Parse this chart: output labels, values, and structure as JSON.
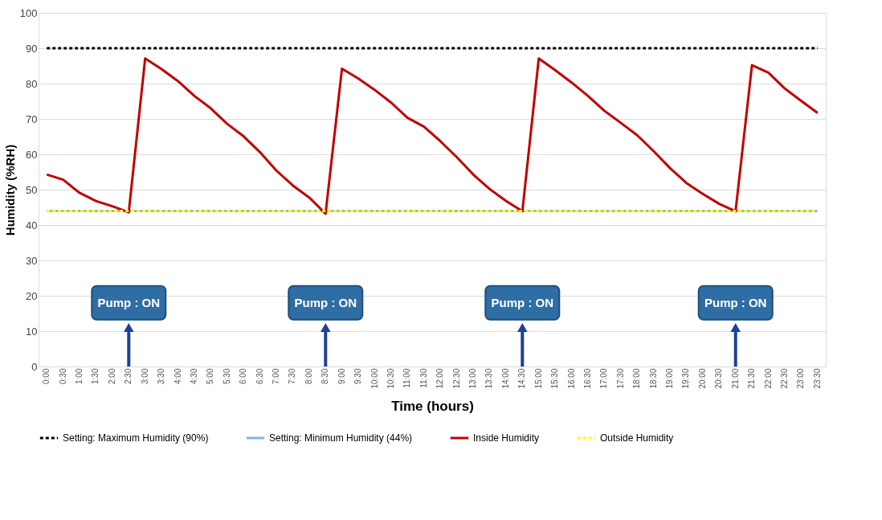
{
  "chart_data": {
    "type": "line",
    "xlabel": "Time (hours)",
    "ylabel": "Humidity (%RH)",
    "categories": [
      "0:00",
      "0:30",
      "1:00",
      "1:30",
      "2:00",
      "2:30",
      "3:00",
      "3:30",
      "4:00",
      "4:30",
      "5:00",
      "5:30",
      "6:00",
      "6:30",
      "7:00",
      "7:30",
      "8:00",
      "8:30",
      "9:00",
      "9:30",
      "10:00",
      "10:30",
      "11:00",
      "11:30",
      "12:00",
      "12:30",
      "13:00",
      "13:30",
      "14:00",
      "14:30",
      "15:00",
      "15:30",
      "16:00",
      "16:30",
      "17:00",
      "17:30",
      "18:00",
      "18:30",
      "19:00",
      "19:30",
      "20:00",
      "20:30",
      "21:00",
      "21:30",
      "22:00",
      "22:30",
      "23:00",
      "23:30"
    ],
    "series": [
      {
        "name": "Setting: Maximum Humidity (90%)",
        "color": "#000000",
        "line_style": "dashed",
        "values": [
          90,
          90,
          90,
          90,
          90,
          90,
          90,
          90,
          90,
          90,
          90,
          90,
          90,
          90,
          90,
          90,
          90,
          90,
          90,
          90,
          90,
          90,
          90,
          90,
          90,
          90,
          90,
          90,
          90,
          90,
          90,
          90,
          90,
          90,
          90,
          90,
          90,
          90,
          90,
          90,
          90,
          90,
          90,
          90,
          90,
          90,
          90,
          90
        ]
      },
      {
        "name": "Setting: Minimum Humidity (44%)",
        "color": "#8eb4e3",
        "line_style": "solid",
        "values": [
          44,
          44,
          44,
          44,
          44,
          44,
          44,
          44,
          44,
          44,
          44,
          44,
          44,
          44,
          44,
          44,
          44,
          44,
          44,
          44,
          44,
          44,
          44,
          44,
          44,
          44,
          44,
          44,
          44,
          44,
          44,
          44,
          44,
          44,
          44,
          44,
          44,
          44,
          44,
          44,
          44,
          44,
          44,
          44,
          44,
          44,
          44,
          44
        ]
      },
      {
        "name": "Inside Humidity",
        "color": "#c00000",
        "line_style": "solid",
        "values": [
          54.3,
          52.8,
          49.1,
          46.8,
          45.3,
          43.6,
          87.1,
          84.1,
          80.7,
          76.5,
          73.0,
          68.6,
          65.1,
          60.6,
          55.4,
          51.2,
          47.8,
          43.2,
          84.2,
          81.4,
          78.2,
          74.6,
          70.3,
          67.8,
          63.7,
          59.2,
          54.3,
          50.2,
          46.8,
          43.9,
          87.1,
          83.8,
          80.3,
          76.5,
          72.3,
          68.9,
          65.4,
          60.9,
          56.1,
          51.9,
          48.8,
          46.0,
          43.9,
          85.2,
          83.1,
          78.6,
          75.1,
          71.7
        ]
      },
      {
        "name": "Outside Humidity",
        "color": "#ffff00",
        "line_style": "dashed",
        "values": [
          44,
          44,
          44,
          44,
          44,
          44,
          44,
          44,
          44,
          44,
          44,
          44,
          44,
          44,
          44,
          44,
          44,
          44,
          44,
          44,
          44,
          44,
          44,
          44,
          44,
          44,
          44,
          44,
          44,
          44,
          44,
          44,
          44,
          44,
          44,
          44,
          44,
          44,
          44,
          44,
          44,
          44,
          44,
          44,
          44,
          44,
          44,
          44
        ]
      }
    ],
    "ylim": [
      0,
      100
    ],
    "yticks": [
      0,
      10,
      20,
      30,
      40,
      50,
      60,
      70,
      80,
      90,
      100
    ],
    "grid": "y",
    "legend": "bottom",
    "marker": "none",
    "annotations": [
      "Pump : ON",
      "Pump : ON",
      "Pump : ON",
      "Pump : ON"
    ]
  }
}
